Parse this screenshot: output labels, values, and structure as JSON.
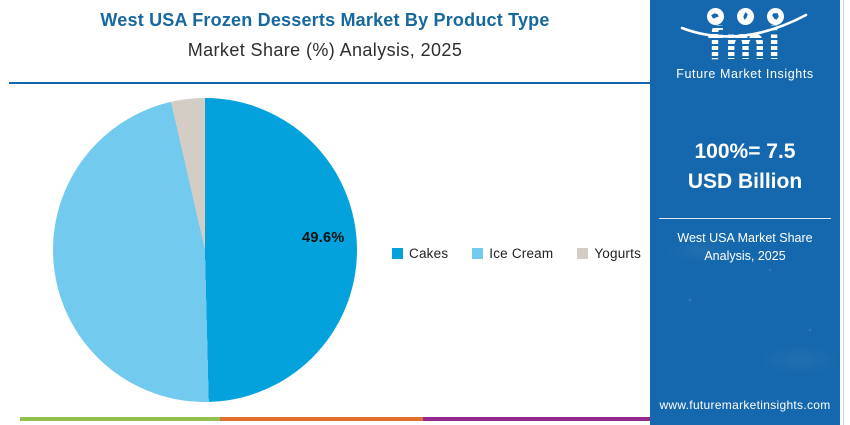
{
  "header": {
    "title": "West USA Frozen Desserts Market By Product Type",
    "subtitle": "Market Share (%) Analysis, 2025"
  },
  "chart_data": {
    "type": "pie",
    "title": "West USA Frozen Desserts Market By Product Type",
    "subtitle": "Market Share (%) Analysis, 2025",
    "categories": [
      "Cakes",
      "Ice Cream",
      "Yogurts"
    ],
    "values": [
      49.6,
      46.8,
      3.6
    ],
    "colors": [
      "#04A2DC",
      "#72CBEE",
      "#D4CDC6"
    ],
    "data_labels": [
      "49.6%",
      "",
      ""
    ],
    "shown_label": "49.6%",
    "start_angle_deg": 0,
    "direction": "clockwise",
    "legend_position": "right",
    "total_note": "100%= 7.5 USD Billion"
  },
  "sidebar": {
    "logo_text": "fmi",
    "logo_tagline": "Future Market Insights",
    "headline": "100%= 7.5 USD Billion",
    "note": "West USA Market Share Analysis, 2025",
    "website": "www.futuremarketinsights.com",
    "bg_color": "#1568AD"
  },
  "footer": {
    "stripes": [
      {
        "name": "green",
        "color": "#94C14E",
        "fraction": 0.317
      },
      {
        "name": "orange",
        "color": "#E2702C",
        "fraction": 0.322
      },
      {
        "name": "purple",
        "color": "#93298D",
        "fraction": 0.361
      }
    ]
  },
  "accents": {
    "divider_blue": "#1566B1",
    "title_blue": "#16689F"
  }
}
